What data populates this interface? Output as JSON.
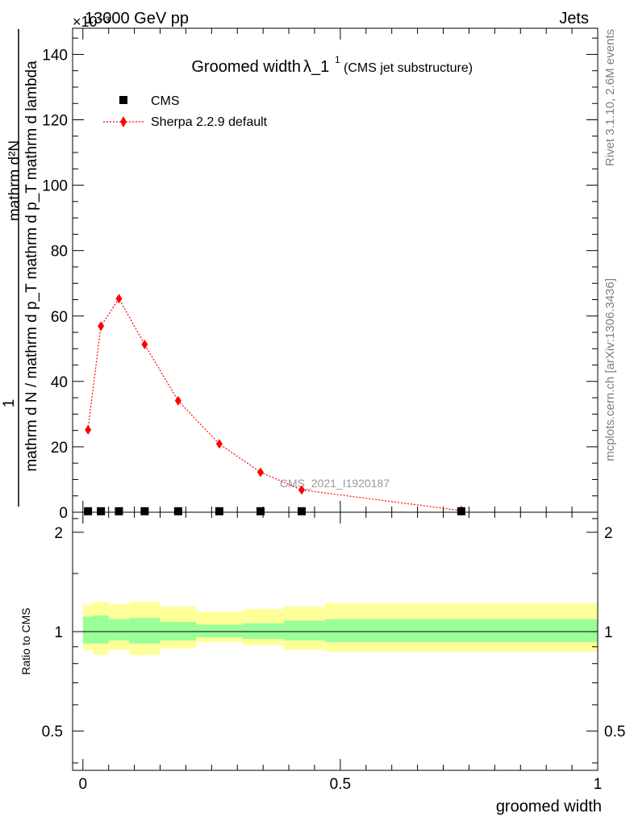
{
  "header": {
    "left": "13000 GeV pp",
    "right": "Jets",
    "exponent": "×10⁻³"
  },
  "side_labels": {
    "rivet": "Rivet 3.1.10,  2.6M events",
    "mcplots": "mcplots.cern.ch [arXiv:1306.3436]"
  },
  "watermark": "CMS_2021_I1920187",
  "colors": {
    "sherpa": "#ff0000",
    "band_outer": "#ffff99",
    "band_inner": "#99ff99",
    "cms": "#000000"
  },
  "chart_data": [
    {
      "type": "line",
      "panel": "main",
      "title": {
        "main": "Groomed width",
        "lambda": "λ_1",
        "superscript": "1",
        "sub": "(CMS jet substructure)"
      },
      "ylabel_lines": [
        "1",
        "mathrm d N / mathrm d p_T mathrm d p_T mathrm d lambda",
        "mathrm d²N"
      ],
      "ylabel_numerator": "mathrm d²N",
      "ylabel_denominator": "mathrm d N / mathrm d p_T mathrm d p_T mathrm d lambda",
      "xlim": [
        -0.02,
        1.0
      ],
      "ylim": [
        0,
        148
      ],
      "yticks": [
        0,
        20,
        40,
        60,
        80,
        100,
        120,
        140
      ],
      "ytick_labels": [
        "0",
        "20",
        "40",
        "60",
        "80",
        "100",
        "120",
        "140"
      ],
      "legend": {
        "placement": "top-left",
        "entries": [
          "CMS",
          "Sherpa 2.2.9 default"
        ]
      },
      "series": [
        {
          "name": "CMS",
          "marker": "square",
          "x": [
            0.01,
            0.035,
            0.07,
            0.12,
            0.185,
            0.265,
            0.345,
            0.425,
            0.735
          ],
          "y": [
            0.3,
            0.3,
            0.3,
            0.3,
            0.3,
            0.3,
            0.3,
            0.3,
            0.3
          ]
        },
        {
          "name": "Sherpa 2.2.9 default",
          "marker": "diamond",
          "line": "dotted",
          "x": [
            0.01,
            0.035,
            0.07,
            0.12,
            0.185,
            0.265,
            0.345,
            0.425,
            0.735
          ],
          "y": [
            25.2,
            56.9,
            65.3,
            51.3,
            34.1,
            20.9,
            12.2,
            6.8,
            0.5
          ]
        }
      ]
    },
    {
      "type": "area",
      "panel": "ratio",
      "ylabel": "Ratio to CMS",
      "xlabel": "groomed width",
      "xlim": [
        -0.02,
        1.0
      ],
      "ylim": [
        0.38,
        2.3
      ],
      "log_y": true,
      "yticks": [
        0.5,
        1,
        2
      ],
      "ytick_labels": [
        "0.5",
        "1",
        "2"
      ],
      "xticks": [
        0,
        0.5,
        1
      ],
      "xtick_labels": [
        "0",
        "0.5",
        "1"
      ],
      "bins": [
        {
          "x0": 0.0,
          "x1": 0.02,
          "outer": [
            0.88,
            1.21
          ],
          "inner": [
            0.92,
            1.11
          ]
        },
        {
          "x0": 0.02,
          "x1": 0.05,
          "outer": [
            0.85,
            1.23
          ],
          "inner": [
            0.92,
            1.12
          ]
        },
        {
          "x0": 0.05,
          "x1": 0.09,
          "outer": [
            0.88,
            1.21
          ],
          "inner": [
            0.94,
            1.09
          ]
        },
        {
          "x0": 0.09,
          "x1": 0.15,
          "outer": [
            0.85,
            1.23
          ],
          "inner": [
            0.92,
            1.1
          ]
        },
        {
          "x0": 0.15,
          "x1": 0.22,
          "outer": [
            0.89,
            1.19
          ],
          "inner": [
            0.94,
            1.07
          ]
        },
        {
          "x0": 0.22,
          "x1": 0.31,
          "outer": [
            0.93,
            1.15
          ],
          "inner": [
            0.96,
            1.05
          ]
        },
        {
          "x0": 0.31,
          "x1": 0.39,
          "outer": [
            0.91,
            1.17
          ],
          "inner": [
            0.95,
            1.06
          ]
        },
        {
          "x0": 0.39,
          "x1": 0.47,
          "outer": [
            0.88,
            1.19
          ],
          "inner": [
            0.94,
            1.08
          ]
        },
        {
          "x0": 0.47,
          "x1": 1.0,
          "outer": [
            0.87,
            1.22
          ],
          "inner": [
            0.93,
            1.09
          ]
        }
      ],
      "sherpa_ratio": 1.0
    }
  ]
}
